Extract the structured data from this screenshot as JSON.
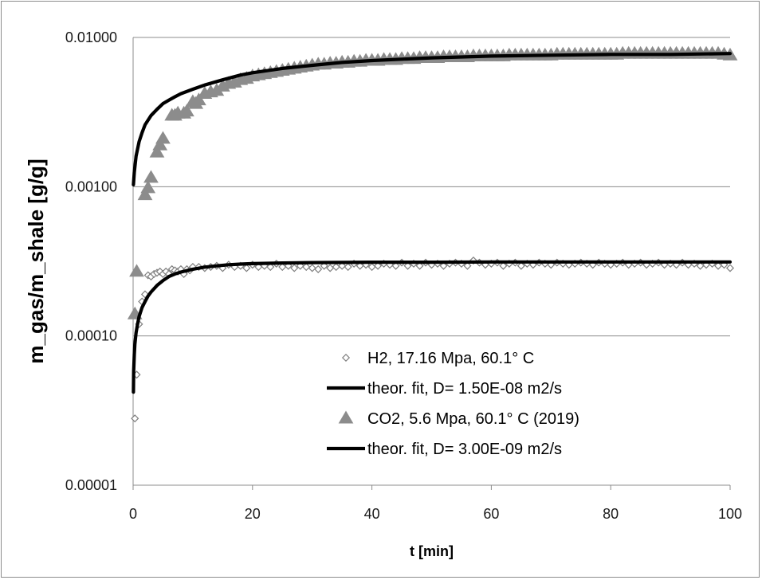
{
  "chart_data": {
    "type": "scatter",
    "x_axis": {
      "label": "t [min]",
      "min": 0,
      "max": 100,
      "ticks": [
        0,
        20,
        40,
        60,
        80,
        100
      ],
      "tick_labels": [
        "0",
        "20",
        "40",
        "60",
        "80",
        "100"
      ]
    },
    "y_axis": {
      "label": "m_gas/m_shale [g/g]",
      "scale": "log",
      "min": 1e-05,
      "max": 0.01,
      "ticks": [
        1e-05,
        0.0001,
        0.001,
        0.01
      ],
      "tick_labels": [
        "0.00001",
        "0.00010",
        "0.00100",
        "0.01000"
      ]
    },
    "grid": "horizontal-major",
    "legend_position": "inside-bottom-right",
    "series": [
      {
        "name": "H2, 17.16 Mpa, 60.1° C",
        "kind": "scatter",
        "marker": "diamond-open",
        "color": "#7f7f7f",
        "x": [
          0.3,
          0.6,
          1.0,
          1.5,
          2.0,
          2.5,
          3.0,
          3.5,
          4.0,
          4.5,
          5.0,
          5.5,
          6.0,
          6.5,
          7.0,
          7.5,
          8.0,
          8.5,
          9.0,
          9.5,
          10.0,
          11.0,
          12.0,
          13.0,
          14.0,
          15.0,
          16.0,
          17.0,
          18.0,
          19.0,
          20.0,
          21.0,
          22.0,
          23.0,
          24.0,
          25.0,
          26.0,
          27.0,
          28.0,
          29.0,
          30.0,
          31.0,
          32.0,
          33.0,
          34.0,
          35.0,
          36.0,
          37.0,
          38.0,
          39.0,
          40.0,
          41.0,
          42.0,
          43.0,
          44.0,
          45.0,
          46.0,
          47.0,
          48.0,
          49.0,
          50.0,
          51.0,
          52.0,
          53.0,
          54.0,
          55.0,
          56.0,
          57.0,
          58.0,
          59.0,
          60.0,
          61.0,
          62.0,
          63.0,
          64.0,
          65.0,
          66.0,
          67.0,
          68.0,
          69.0,
          70.0,
          71.0,
          72.0,
          73.0,
          74.0,
          75.0,
          76.0,
          77.0,
          78.0,
          79.0,
          80.0,
          81.0,
          82.0,
          83.0,
          84.0,
          85.0,
          86.0,
          87.0,
          88.0,
          89.0,
          90.0,
          91.0,
          92.0,
          93.0,
          94.0,
          95.0,
          96.0,
          97.0,
          98.0,
          99.0,
          100.0
        ],
        "y": [
          2.8e-05,
          5.5e-05,
          0.00012,
          0.00017,
          0.00019,
          0.000255,
          0.00025,
          0.00026,
          0.000265,
          0.00027,
          0.00026,
          0.00027,
          0.00026,
          0.00028,
          0.000275,
          0.00027,
          0.00028,
          0.00026,
          0.00028,
          0.000275,
          0.00029,
          0.00029,
          0.000285,
          0.00029,
          0.000295,
          0.000285,
          0.0003,
          0.00029,
          0.000295,
          0.000285,
          0.0003,
          0.00029,
          0.000295,
          0.00029,
          0.000305,
          0.00029,
          0.000295,
          0.000285,
          0.000295,
          0.00029,
          0.000285,
          0.00028,
          0.000295,
          0.000285,
          0.00029,
          0.000295,
          0.00029,
          0.000305,
          0.000295,
          0.0003,
          0.00029,
          0.000295,
          0.000305,
          0.0003,
          0.000295,
          0.00031,
          0.000295,
          0.000305,
          0.000295,
          0.00031,
          0.0003,
          0.000305,
          0.000295,
          0.000305,
          0.00031,
          0.000305,
          0.000295,
          0.00032,
          0.00031,
          0.0003,
          0.000305,
          0.00031,
          0.000295,
          0.000305,
          0.00031,
          0.000295,
          0.000305,
          0.0003,
          0.00031,
          0.000305,
          0.0003,
          0.00031,
          0.000305,
          0.0003,
          0.000305,
          0.00031,
          0.000305,
          0.0003,
          0.00031,
          0.000305,
          0.0003,
          0.000305,
          0.00031,
          0.0003,
          0.000305,
          0.00031,
          0.0003,
          0.000305,
          0.00031,
          0.0003,
          0.000305,
          0.0003,
          0.00031,
          0.0003,
          0.000305,
          0.000295,
          0.0003,
          0.000305,
          0.000295,
          0.0003,
          0.000285
        ]
      },
      {
        "name": "theor. fit, D=  1.50E-08 m2/s",
        "kind": "line",
        "color": "#000000",
        "x": [
          0.05,
          0.1,
          0.2,
          0.3,
          0.5,
          0.75,
          1.0,
          1.5,
          2.0,
          2.5,
          3.0,
          4.0,
          5.0,
          6.0,
          7.0,
          8.0,
          10.0,
          12.0,
          14.0,
          16.0,
          18.0,
          20.0,
          25.0,
          30.0,
          40.0,
          50.0,
          60.0,
          70.0,
          80.0,
          90.0,
          100.0
        ],
        "y": [
          4.2e-05,
          5.8e-05,
          7.5e-05,
          8.8e-05,
          0.000105,
          0.00012,
          0.000135,
          0.000155,
          0.00017,
          0.000185,
          0.000197,
          0.000218,
          0.000235,
          0.00025,
          0.00026,
          0.000268,
          0.00028,
          0.000289,
          0.000295,
          0.0003,
          0.000303,
          0.000305,
          0.000308,
          0.00031,
          0.000312,
          0.000312,
          0.000313,
          0.000313,
          0.000313,
          0.000313,
          0.000313
        ]
      },
      {
        "name": "CO2, 5.6 Mpa, 60.1° C (2019)",
        "kind": "scatter",
        "marker": "triangle-filled",
        "color": "#8c8c8c",
        "x": [
          0.3,
          0.6,
          2.0,
          2.5,
          3.0,
          4.0,
          4.5,
          5.0,
          6.5,
          7.0,
          7.5,
          8.5,
          9.0,
          10.0,
          10.5,
          11.0,
          12.0,
          13.0,
          14.0,
          15.0,
          16.0,
          17.0,
          18.0,
          19.0,
          20.0,
          21.0,
          22.0,
          23.0,
          24.0,
          25.0,
          26.0,
          27.0,
          28.0,
          29.0,
          30.0,
          31.0,
          32.0,
          33.0,
          34.0,
          35.0,
          36.0,
          37.0,
          38.0,
          39.0,
          40.0,
          41.0,
          42.0,
          43.0,
          44.0,
          45.0,
          46.0,
          47.0,
          48.0,
          49.0,
          50.0,
          51.0,
          52.0,
          53.0,
          54.0,
          55.0,
          56.0,
          57.0,
          58.0,
          59.0,
          60.0,
          61.0,
          62.0,
          63.0,
          64.0,
          65.0,
          66.0,
          67.0,
          68.0,
          69.0,
          70.0,
          71.0,
          72.0,
          73.0,
          74.0,
          75.0,
          76.0,
          77.0,
          78.0,
          79.0,
          80.0,
          81.0,
          82.0,
          83.0,
          84.0,
          85.0,
          86.0,
          87.0,
          88.0,
          89.0,
          90.0,
          91.0,
          92.0,
          93.0,
          94.0,
          95.0,
          96.0,
          97.0,
          98.0,
          99.0,
          100.0
        ],
        "y": [
          0.00014,
          0.00027,
          0.00088,
          0.00098,
          0.00115,
          0.0017,
          0.0019,
          0.0021,
          0.003,
          0.003,
          0.0031,
          0.0031,
          0.0032,
          0.0037,
          0.0036,
          0.0038,
          0.0042,
          0.0043,
          0.0044,
          0.0047,
          0.0049,
          0.005,
          0.0052,
          0.0053,
          0.0055,
          0.0056,
          0.0057,
          0.0058,
          0.0059,
          0.006,
          0.0061,
          0.0062,
          0.0063,
          0.0064,
          0.0065,
          0.0066,
          0.0066,
          0.0067,
          0.0067,
          0.0068,
          0.0068,
          0.0069,
          0.0069,
          0.007,
          0.007,
          0.007,
          0.0071,
          0.0071,
          0.0071,
          0.0072,
          0.0072,
          0.0072,
          0.0073,
          0.0073,
          0.0073,
          0.0073,
          0.0074,
          0.0074,
          0.0074,
          0.0074,
          0.0074,
          0.0075,
          0.0075,
          0.0075,
          0.0075,
          0.0075,
          0.0075,
          0.0076,
          0.0076,
          0.0076,
          0.0076,
          0.0076,
          0.0076,
          0.0076,
          0.0076,
          0.0077,
          0.0077,
          0.0077,
          0.0077,
          0.0077,
          0.0077,
          0.0077,
          0.0077,
          0.0077,
          0.0077,
          0.0077,
          0.0078,
          0.0078,
          0.0078,
          0.0078,
          0.0078,
          0.0078,
          0.0078,
          0.0078,
          0.0078,
          0.0078,
          0.0078,
          0.0078,
          0.0078,
          0.0078,
          0.0078,
          0.0078,
          0.0078,
          0.0077,
          0.0076
        ]
      },
      {
        "name": "theor. fit, D=  3.00E-09 m2/s",
        "kind": "line",
        "color": "#000000",
        "x": [
          0.05,
          0.2,
          0.5,
          1.0,
          1.5,
          2.0,
          3.0,
          4.0,
          5.0,
          6.0,
          7.0,
          8.0,
          10.0,
          12.0,
          15.0,
          18.0,
          20.0,
          25.0,
          30.0,
          35.0,
          40.0,
          50.0,
          60.0,
          70.0,
          80.0,
          90.0,
          100.0
        ],
        "y": [
          0.00103,
          0.00125,
          0.0016,
          0.002,
          0.0023,
          0.0026,
          0.003,
          0.0033,
          0.0036,
          0.0038,
          0.004,
          0.0042,
          0.0045,
          0.0048,
          0.0052,
          0.0056,
          0.0058,
          0.0062,
          0.0065,
          0.0068,
          0.007,
          0.0073,
          0.0075,
          0.0076,
          0.0077,
          0.0077,
          0.0078
        ]
      }
    ]
  }
}
